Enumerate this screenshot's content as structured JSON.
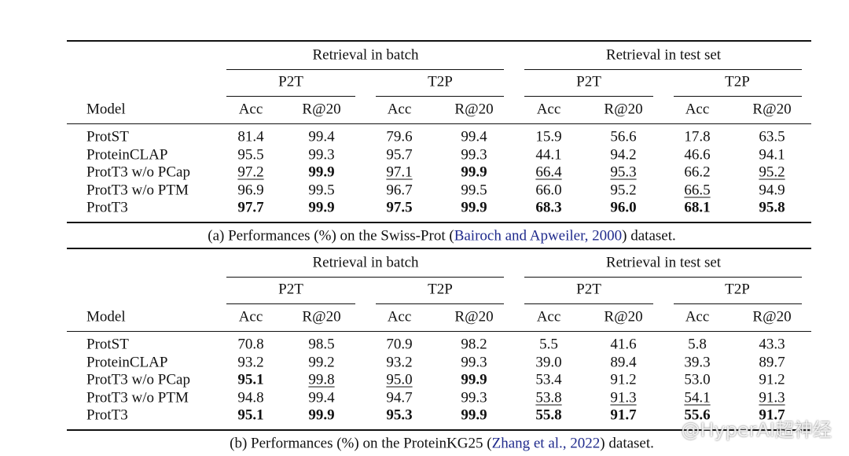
{
  "tables": [
    {
      "group_headers": [
        "Retrieval in batch",
        "Retrieval in test set"
      ],
      "sub_headers": [
        "P2T",
        "T2P",
        "P2T",
        "T2P"
      ],
      "columns": [
        "Model",
        "Acc",
        "R@20",
        "Acc",
        "R@20",
        "Acc",
        "R@20",
        "Acc",
        "R@20"
      ],
      "rows": [
        [
          "ProtST",
          "81.4",
          "99.4",
          "79.6",
          "99.4",
          "15.9",
          "56.6",
          "17.8",
          "63.5"
        ],
        [
          "ProteinCLAP",
          "95.5",
          "99.3",
          "95.7",
          "99.3",
          "44.1",
          "94.2",
          "46.6",
          "94.1"
        ],
        [
          "ProtT3 w/o PCap",
          "97.2",
          "99.9",
          "97.1",
          "99.9",
          "66.4",
          "95.3",
          "66.2",
          "95.2"
        ],
        [
          "ProtT3 w/o PTM",
          "96.9",
          "99.5",
          "96.7",
          "99.5",
          "66.0",
          "95.2",
          "66.5",
          "94.9"
        ],
        [
          "ProtT3",
          "97.7",
          "99.9",
          "97.5",
          "99.9",
          "68.3",
          "96.0",
          "68.1",
          "95.8"
        ]
      ],
      "bold": [
        [
          2,
          2
        ],
        [
          2,
          4
        ],
        [
          4,
          1
        ],
        [
          4,
          2
        ],
        [
          4,
          3
        ],
        [
          4,
          4
        ],
        [
          4,
          5
        ],
        [
          4,
          6
        ],
        [
          4,
          7
        ],
        [
          4,
          8
        ]
      ],
      "underline": [
        [
          2,
          1
        ],
        [
          2,
          3
        ],
        [
          2,
          5
        ],
        [
          2,
          6
        ],
        [
          2,
          8
        ],
        [
          3,
          7
        ]
      ],
      "caption": {
        "prefix": "(a) Performances (%) on the Swiss-Prot (",
        "citation": "Bairoch and Apweiler, 2000",
        "suffix": ") dataset."
      }
    },
    {
      "group_headers": [
        "Retrieval in batch",
        "Retrieval in test set"
      ],
      "sub_headers": [
        "P2T",
        "T2P",
        "P2T",
        "T2P"
      ],
      "columns": [
        "Model",
        "Acc",
        "R@20",
        "Acc",
        "R@20",
        "Acc",
        "R@20",
        "Acc",
        "R@20"
      ],
      "rows": [
        [
          "ProtST",
          "70.8",
          "98.5",
          "70.9",
          "98.2",
          "5.5",
          "41.6",
          "5.8",
          "43.3"
        ],
        [
          "ProteinCLAP",
          "93.2",
          "99.2",
          "93.2",
          "99.3",
          "39.0",
          "89.4",
          "39.3",
          "89.7"
        ],
        [
          "ProtT3 w/o PCap",
          "95.1",
          "99.8",
          "95.0",
          "99.9",
          "53.4",
          "91.2",
          "53.0",
          "91.2"
        ],
        [
          "ProtT3 w/o PTM",
          "94.8",
          "99.4",
          "94.7",
          "99.3",
          "53.8",
          "91.3",
          "54.1",
          "91.3"
        ],
        [
          "ProtT3",
          "95.1",
          "99.9",
          "95.3",
          "99.9",
          "55.8",
          "91.7",
          "55.6",
          "91.7"
        ]
      ],
      "bold": [
        [
          2,
          1
        ],
        [
          2,
          4
        ],
        [
          4,
          1
        ],
        [
          4,
          2
        ],
        [
          4,
          3
        ],
        [
          4,
          4
        ],
        [
          4,
          5
        ],
        [
          4,
          6
        ],
        [
          4,
          7
        ],
        [
          4,
          8
        ]
      ],
      "underline": [
        [
          2,
          2
        ],
        [
          2,
          3
        ],
        [
          3,
          5
        ],
        [
          3,
          6
        ],
        [
          3,
          7
        ],
        [
          3,
          8
        ]
      ],
      "caption": {
        "prefix": "(b) Performances (%) on the ProteinKG25 (",
        "citation": "Zhang et al., 2022",
        "suffix": ") dataset."
      }
    }
  ],
  "watermark": "@HyperAI超神经"
}
